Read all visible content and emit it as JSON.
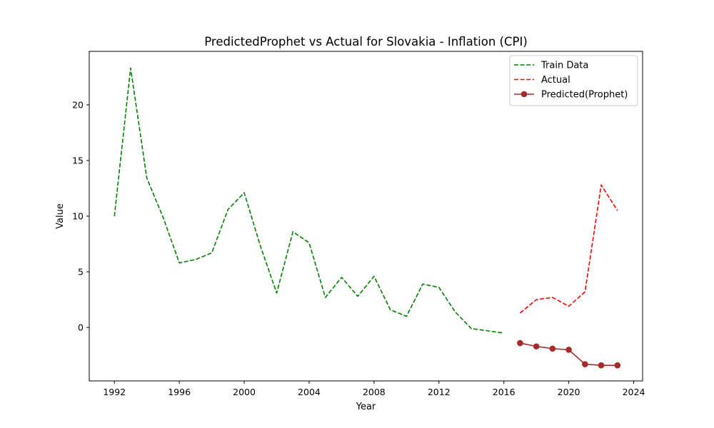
{
  "chart_data": {
    "type": "line",
    "title": "PredictedProphet vs Actual for Slovakia - Inflation (CPI)",
    "xlabel": "Year",
    "ylabel": "Value",
    "xlim": [
      1990.45,
      2024.55
    ],
    "ylim": [
      -4.8,
      24.8
    ],
    "xticks": [
      1992,
      1996,
      2000,
      2004,
      2008,
      2012,
      2016,
      2020,
      2024
    ],
    "yticks": [
      0,
      5,
      10,
      15,
      20
    ],
    "grid": false,
    "legend_position": "top-right",
    "series": [
      {
        "name": "Train Data",
        "color": "#008000",
        "style": "dashed",
        "marker": "none",
        "x": [
          1992,
          1993,
          1994,
          1995,
          1996,
          1997,
          1998,
          1999,
          2000,
          2001,
          2002,
          2003,
          2004,
          2005,
          2006,
          2007,
          2008,
          2009,
          2010,
          2011,
          2012,
          2013,
          2014,
          2015,
          2016
        ],
        "y": [
          10.0,
          23.3,
          13.4,
          9.9,
          5.8,
          6.1,
          6.7,
          10.6,
          12.1,
          7.3,
          3.1,
          8.6,
          7.6,
          2.7,
          4.5,
          2.8,
          4.6,
          1.6,
          1.0,
          3.9,
          3.6,
          1.4,
          -0.1,
          -0.3,
          -0.5
        ]
      },
      {
        "name": "Actual",
        "color": "#ff0000",
        "style": "dashed",
        "marker": "none",
        "x": [
          2017,
          2018,
          2019,
          2020,
          2021,
          2022,
          2023
        ],
        "y": [
          1.3,
          2.5,
          2.7,
          1.9,
          3.2,
          12.8,
          10.5
        ]
      },
      {
        "name": "Predicted(Prophet)",
        "color": "#a52a2a",
        "style": "solid",
        "marker": "circle",
        "x": [
          2017,
          2018,
          2019,
          2020,
          2021,
          2022,
          2023
        ],
        "y": [
          -1.4,
          -1.7,
          -1.9,
          -2.0,
          -3.3,
          -3.4,
          -3.4
        ]
      }
    ]
  }
}
